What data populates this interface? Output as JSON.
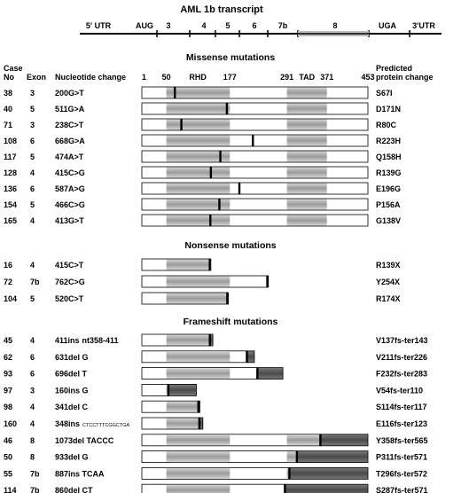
{
  "title": "AML 1b transcript",
  "transcript": {
    "labels": [
      {
        "text": "5' UTR",
        "x": 0.25
      },
      {
        "text": "AUG",
        "x": 0.375
      },
      {
        "text": "3",
        "x": 0.455
      },
      {
        "text": "4",
        "x": 0.58
      },
      {
        "text": "5",
        "x": 0.635
      },
      {
        "text": "6",
        "x": 0.735
      },
      {
        "text": "7b",
        "x": 0.85
      },
      {
        "text": "8",
        "x": 1.1
      },
      {
        "text": "UGA",
        "x": 1.34
      },
      {
        "text": "3'UTR",
        "x": 1.49
      }
    ]
  },
  "headers": {
    "case": "Case",
    "no": "No",
    "exon": "Exon",
    "nt": "Nucleotide change",
    "pred1": "Predicted",
    "pred2": "protein change"
  },
  "ruler": [
    {
      "text": "1",
      "pos": 1
    },
    {
      "text": "50",
      "pos": 50
    },
    {
      "text": "RHD",
      "pos": 113
    },
    {
      "text": "177",
      "pos": 177
    },
    {
      "text": "291",
      "pos": 291
    },
    {
      "text": "TAD",
      "pos": 331
    },
    {
      "text": "371",
      "pos": 371
    },
    {
      "text": "453",
      "pos": 453
    }
  ],
  "domains": {
    "rhd": [
      50,
      177
    ],
    "tad": [
      291,
      371
    ],
    "length": 453
  },
  "sections": [
    {
      "title": "Missense mutations",
      "kind": "missense",
      "rows": [
        {
          "case": "38",
          "exon": "3",
          "nt": "200G>T",
          "protein": "S67I",
          "pos": 67
        },
        {
          "case": "40",
          "exon": "5",
          "nt": "511G>A",
          "protein": "D171N",
          "pos": 171
        },
        {
          "case": "71",
          "exon": "3",
          "nt": "238C>T",
          "protein": "R80C",
          "pos": 80
        },
        {
          "case": "108",
          "exon": "6",
          "nt": "668G>A",
          "protein": "R223H",
          "pos": 223
        },
        {
          "case": "117",
          "exon": "5",
          "nt": "474A>T",
          "protein": "Q158H",
          "pos": 158
        },
        {
          "case": "128",
          "exon": "4",
          "nt": "415C>G",
          "protein": "R139G",
          "pos": 139
        },
        {
          "case": "136",
          "exon": "6",
          "nt": "587A>G",
          "protein": "E196G",
          "pos": 196
        },
        {
          "case": "154",
          "exon": "5",
          "nt": "466C>G",
          "protein": "P156A",
          "pos": 156
        },
        {
          "case": "165",
          "exon": "4",
          "nt": "413G>T",
          "protein": "G138V",
          "pos": 138
        }
      ]
    },
    {
      "title": "Nonsense mutations",
      "kind": "nonsense",
      "rows": [
        {
          "case": "16",
          "exon": "4",
          "nt": "415C>T",
          "protein": "R139X",
          "pos": 139
        },
        {
          "case": "72",
          "exon": "7b",
          "nt": "762C>G",
          "protein": "Y254X",
          "pos": 254
        },
        {
          "case": "104",
          "exon": "5",
          "nt": "520C>T",
          "protein": "R174X",
          "pos": 174
        }
      ]
    },
    {
      "title": "Frameshift mutations",
      "kind": "frameshift",
      "rows": [
        {
          "case": "45",
          "exon": "4",
          "nt": "411ins",
          "nt_suffix": "nt358-411",
          "protein": "V137fs-ter143",
          "pos": 137,
          "end": 143
        },
        {
          "case": "62",
          "exon": "6",
          "nt": "631del G",
          "protein": "V211fs-ter226",
          "pos": 211,
          "end": 226
        },
        {
          "case": "93",
          "exon": "6",
          "nt": "696del T",
          "protein": "F232fs-ter283",
          "pos": 232,
          "end": 283
        },
        {
          "case": "97",
          "exon": "3",
          "nt": "160ins G",
          "protein": "V54fs-ter110",
          "pos": 54,
          "end": 110
        },
        {
          "case": "98",
          "exon": "4",
          "nt": "341del C",
          "protein": "S114fs-ter117",
          "pos": 114,
          "end": 117
        },
        {
          "case": "160",
          "exon": "4",
          "nt": "348ins",
          "nt_suffix": "CTCCTTTCGGCTGA",
          "protein": "E116fs-ter123",
          "pos": 116,
          "end": 123
        },
        {
          "case": "46",
          "exon": "8",
          "nt": "1073del TACCC",
          "protein": "Y358fs-ter565",
          "pos": 358,
          "end": 565
        },
        {
          "case": "50",
          "exon": "8",
          "nt": "933del G",
          "protein": "P311fs-ter571",
          "pos": 311,
          "end": 571
        },
        {
          "case": "55",
          "exon": "7b",
          "nt": "887ins TCAA",
          "protein": "T296fs-ter572",
          "pos": 296,
          "end": 572
        },
        {
          "case": "114",
          "exon": "7b",
          "nt": "860del CT",
          "protein": "S287fs-ter571",
          "pos": 287,
          "end": 571
        }
      ]
    }
  ]
}
